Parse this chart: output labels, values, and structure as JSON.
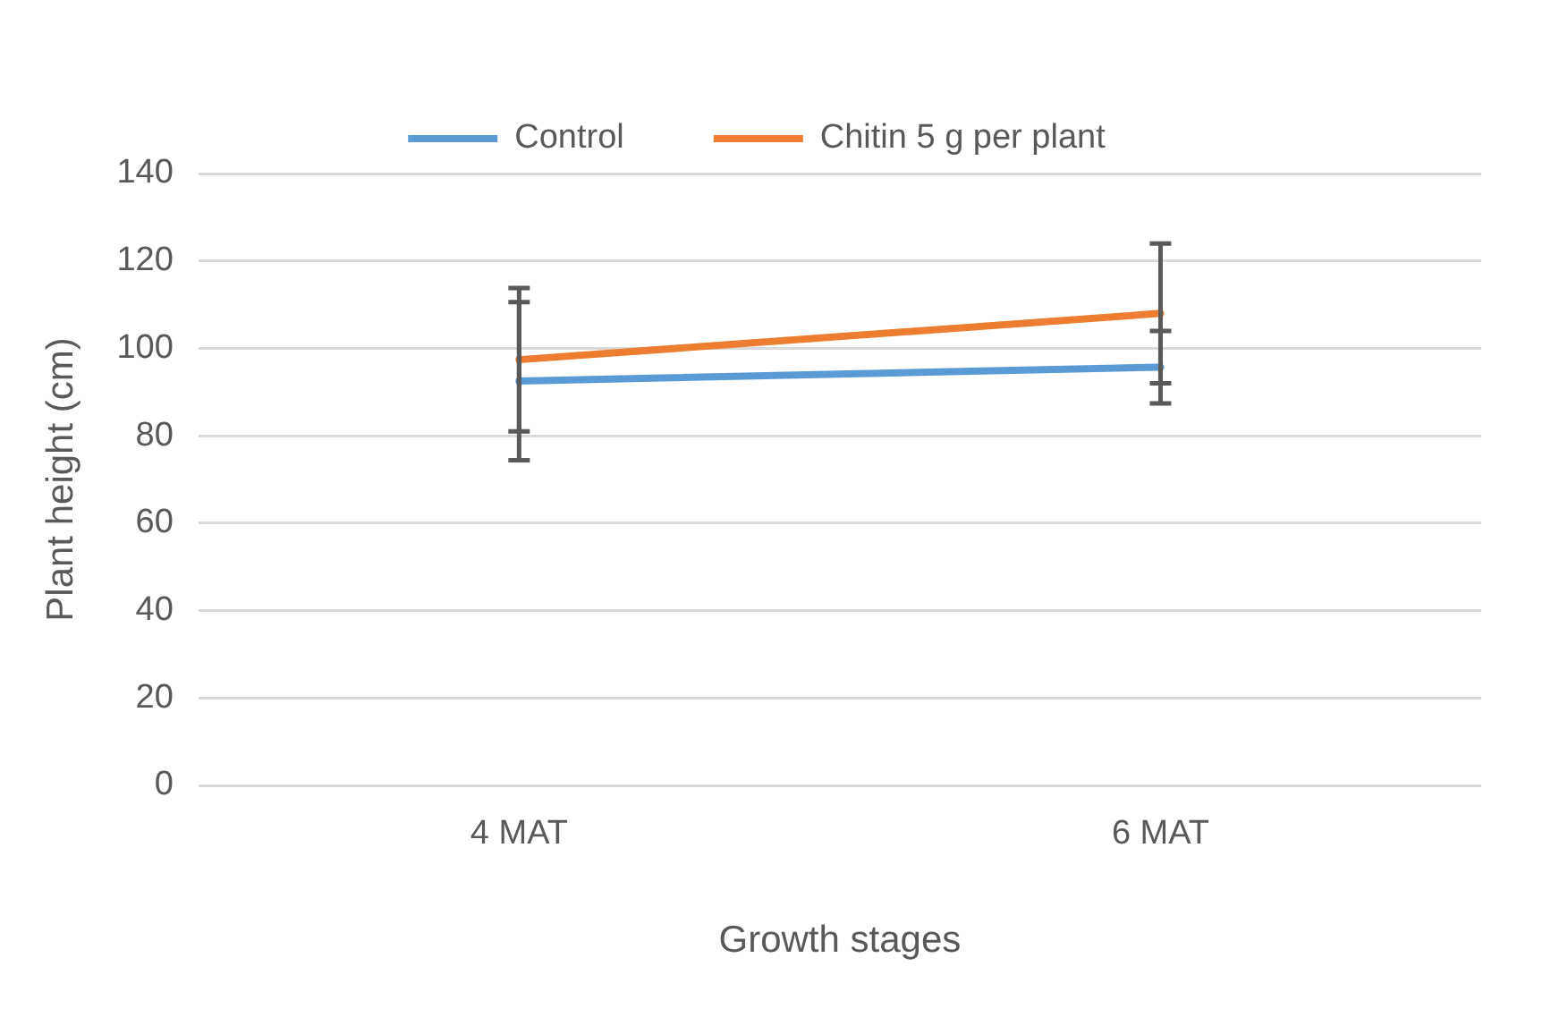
{
  "chart_data": {
    "type": "line",
    "xlabel": "Growth stages",
    "ylabel": "Plant height (cm)",
    "categories": [
      "4 MAT",
      "6 MAT"
    ],
    "series": [
      {
        "name": "Control",
        "color": "#5b9bd5",
        "values": [
          92.5,
          95.7
        ],
        "errors": [
          18.1,
          8.3
        ]
      },
      {
        "name": "Chitin 5 g per plant",
        "color": "#ed7d31",
        "values": [
          97.4,
          108
        ],
        "errors": [
          16.4,
          16
        ]
      }
    ],
    "ylim": [
      0,
      140
    ],
    "yticks": [
      0,
      20,
      40,
      60,
      80,
      100,
      120,
      140
    ],
    "grid": "y",
    "legend": "top",
    "marker": "none",
    "line_style": "solid"
  }
}
